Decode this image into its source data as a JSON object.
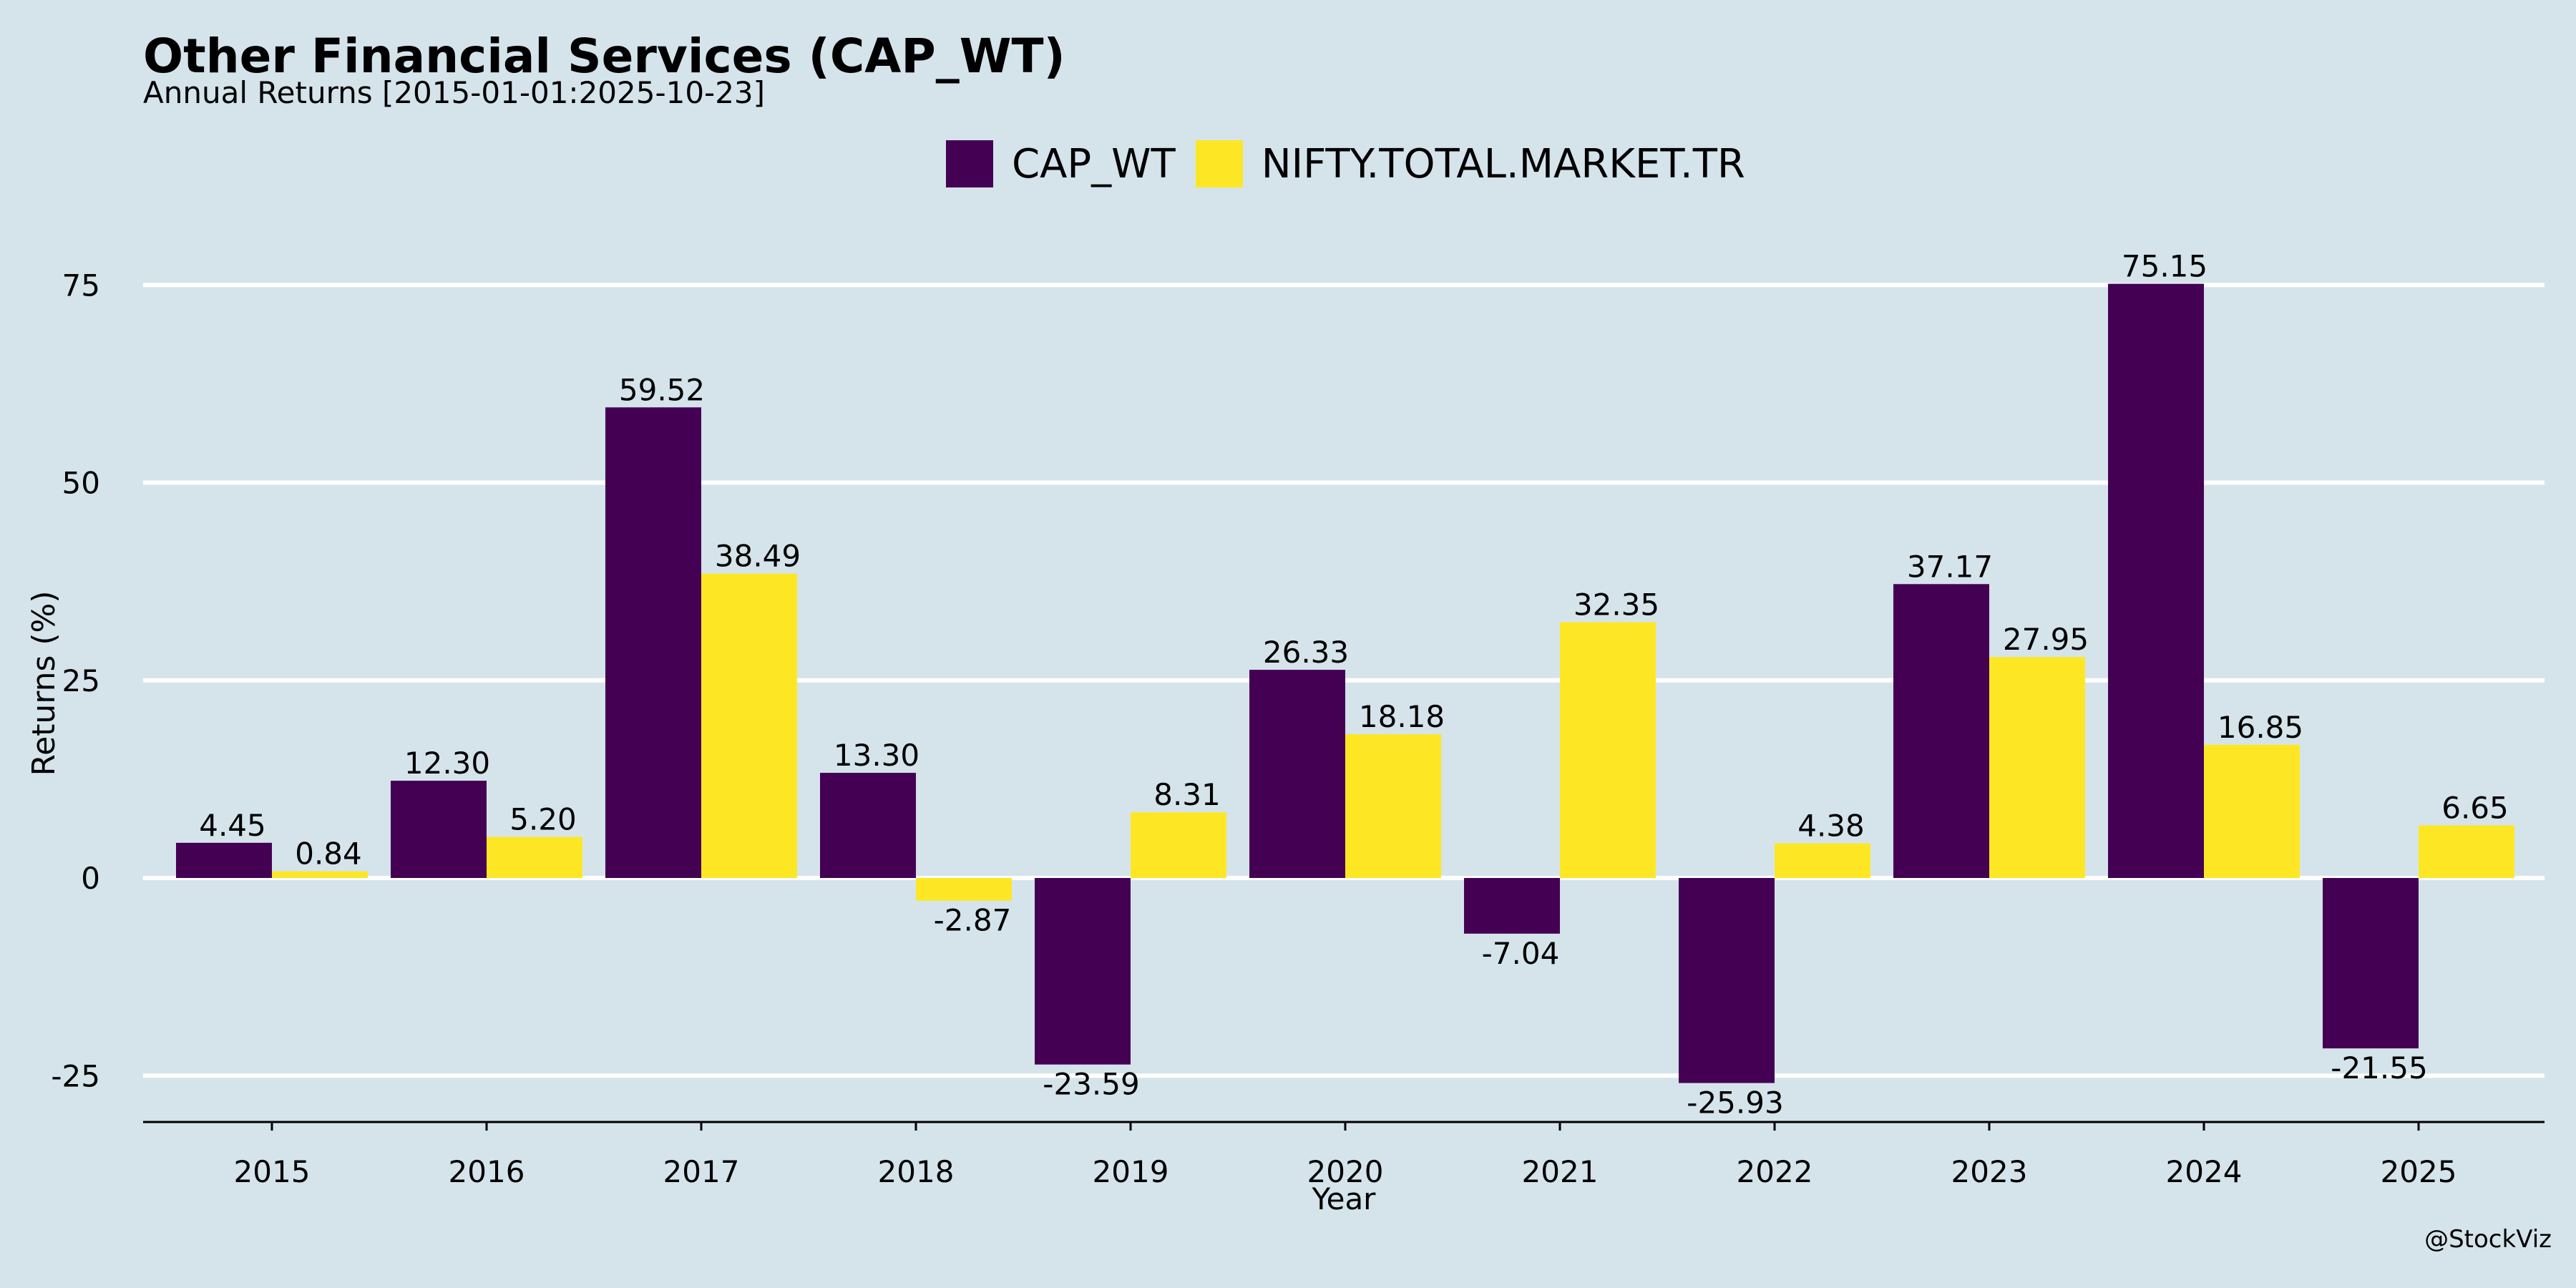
{
  "chart_data": {
    "type": "bar",
    "title": "Other Financial Services (CAP_WT)",
    "subtitle": "Annual Returns [2015-01-01:2025-10-23]",
    "xlabel": "Year",
    "ylabel": "Returns (%)",
    "categories": [
      "2015",
      "2016",
      "2017",
      "2018",
      "2019",
      "2020",
      "2021",
      "2022",
      "2023",
      "2024",
      "2025"
    ],
    "series": [
      {
        "name": "CAP_WT",
        "color": "#440154",
        "values": [
          4.45,
          12.3,
          59.52,
          13.3,
          -23.59,
          26.33,
          -7.04,
          -25.93,
          37.17,
          75.15,
          -21.55
        ],
        "labels": [
          "4.45",
          "12.30",
          "59.52",
          "13.30",
          "-23.59",
          "26.33",
          "-7.04",
          "-25.93",
          "37.17",
          "75.15",
          "-21.55"
        ]
      },
      {
        "name": "NIFTY.TOTAL.MARKET.TR",
        "color": "#fde725",
        "values": [
          0.84,
          5.2,
          38.49,
          -2.87,
          8.31,
          18.18,
          32.35,
          4.38,
          27.95,
          16.85,
          6.65
        ],
        "labels": [
          "0.84",
          "5.20",
          "38.49",
          "-2.87",
          "8.31",
          "18.18",
          "32.35",
          "4.38",
          "27.95",
          "16.85",
          "6.65"
        ]
      }
    ],
    "yticks": [
      -25,
      0,
      25,
      50,
      75
    ],
    "ylim": [
      -31,
      90
    ],
    "grid": true,
    "legend_position": "top-center",
    "background_color": "#d5e4eb"
  },
  "credit": "@StockViz"
}
